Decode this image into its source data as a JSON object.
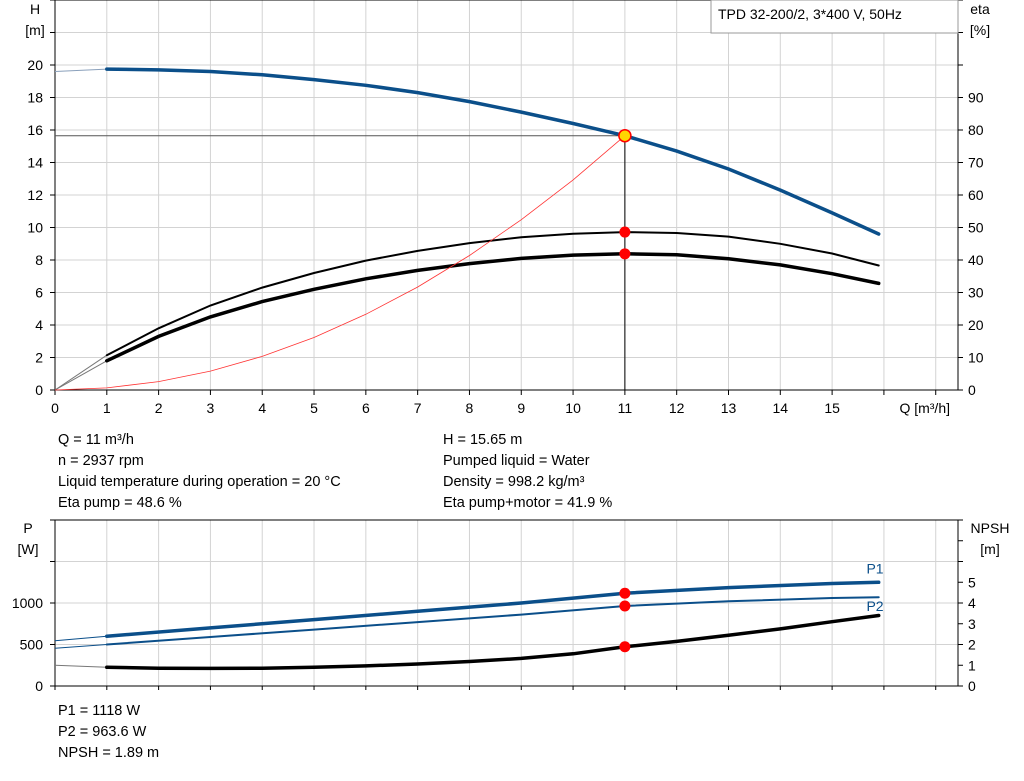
{
  "legend_box": "TPD 32-200/2, 3*400 V, 50Hz",
  "colors": {
    "head": "#0b4f8a",
    "eta": "#000000",
    "system": "#ff3333",
    "power": "#0b4f8a",
    "npsh": "#000000",
    "point": "#ff0000",
    "duty_point": "#ffd700",
    "grid": "#d3d3d3"
  },
  "chart_data": [
    {
      "type": "line",
      "xlabel": "Q [m³/h]",
      "ylabel": [
        "H",
        "[m]"
      ],
      "y2label": [
        "eta",
        "[%]"
      ],
      "xlim": [
        0,
        17
      ],
      "xticks": [
        0,
        1,
        2,
        3,
        4,
        5,
        6,
        7,
        8,
        9,
        10,
        11,
        12,
        13,
        14,
        15
      ],
      "ylim": [
        0,
        24
      ],
      "yticks": [
        0,
        2,
        4,
        6,
        8,
        10,
        12,
        14,
        16,
        18,
        20
      ],
      "y2lim": [
        0,
        120
      ],
      "y2ticks": [
        0,
        10,
        20,
        30,
        40,
        50,
        60,
        70,
        80,
        90
      ],
      "grid": true,
      "series": [
        {
          "key": "H",
          "axis": "left",
          "x": [
            0,
            1,
            2,
            3,
            4,
            5,
            6,
            7,
            8,
            9,
            10,
            11,
            12,
            13,
            14,
            15,
            15.9
          ],
          "y": [
            19.6,
            19.75,
            19.7,
            19.6,
            19.4,
            19.1,
            18.75,
            18.3,
            17.75,
            17.1,
            16.4,
            15.65,
            14.7,
            13.6,
            12.3,
            10.9,
            9.6
          ]
        },
        {
          "key": "eta_pump",
          "axis": "right",
          "x": [
            0,
            1,
            2,
            3,
            4,
            5,
            6,
            7,
            8,
            9,
            10,
            11,
            12,
            13,
            14,
            15,
            15.9
          ],
          "y": [
            0,
            10.7,
            19,
            26,
            31.5,
            36,
            39.8,
            42.8,
            45.2,
            47,
            48.1,
            48.6,
            48.3,
            47.2,
            45,
            42,
            38.3
          ]
        },
        {
          "key": "eta_pump_motor",
          "axis": "right",
          "x": [
            0,
            1,
            2,
            3,
            4,
            5,
            6,
            7,
            8,
            9,
            10,
            11,
            12,
            13,
            14,
            15,
            15.9
          ],
          "y": [
            0,
            9,
            16.5,
            22.5,
            27.2,
            31,
            34.2,
            36.8,
            38.9,
            40.5,
            41.5,
            41.9,
            41.6,
            40.4,
            38.5,
            35.8,
            32.8
          ]
        },
        {
          "key": "system",
          "axis": "left",
          "x": [
            0,
            1,
            2,
            3,
            4,
            5,
            6,
            7,
            8,
            9,
            10,
            11
          ],
          "y": [
            0,
            0.13,
            0.52,
            1.16,
            2.07,
            3.23,
            4.66,
            6.34,
            8.28,
            10.48,
            12.93,
            15.65
          ]
        }
      ],
      "duty_point": {
        "Q": 11,
        "H": 15.65,
        "eta_pump": 48.6,
        "eta_pump_motor": 41.9
      }
    },
    {
      "type": "line",
      "ylabel": [
        "P",
        "[W]"
      ],
      "y2label": [
        "NPSH",
        "[m]"
      ],
      "xlim": [
        0,
        17
      ],
      "ylim": [
        0,
        2000
      ],
      "yticks": [
        0,
        500,
        1000
      ],
      "y2lim": [
        0,
        8
      ],
      "y2ticks": [
        0,
        1,
        2,
        3,
        4,
        5
      ],
      "grid": true,
      "series": [
        {
          "key": "P1",
          "name": "P1",
          "axis": "left",
          "x": [
            0,
            1,
            3,
            5,
            7,
            9,
            11,
            13,
            15,
            15.9
          ],
          "y": [
            545,
            600,
            700,
            800,
            900,
            1000,
            1118,
            1185,
            1235,
            1250
          ]
        },
        {
          "key": "P2",
          "name": "P2",
          "axis": "left",
          "x": [
            0,
            1,
            3,
            5,
            7,
            9,
            11,
            13,
            15,
            15.9
          ],
          "y": [
            455,
            500,
            590,
            680,
            770,
            860,
            963.6,
            1020,
            1060,
            1070
          ]
        },
        {
          "key": "NPSH",
          "axis": "right",
          "x": [
            0,
            1,
            2,
            3,
            4,
            5,
            6,
            7,
            8,
            9,
            10,
            11,
            12,
            13,
            14,
            15,
            15.9
          ],
          "y": [
            1.0,
            0.9,
            0.86,
            0.85,
            0.86,
            0.9,
            0.97,
            1.06,
            1.18,
            1.33,
            1.55,
            1.89,
            2.15,
            2.45,
            2.75,
            3.1,
            3.4
          ]
        }
      ],
      "duty_point": {
        "Q": 11,
        "P1": 1118,
        "P2": 963.6,
        "NPSH": 1.89
      }
    }
  ],
  "info_left": [
    "Q = 11 m³/h",
    "n = 2937 rpm",
    "Liquid temperature during operation = 20 °C",
    "Eta pump = 48.6 %"
  ],
  "info_right": [
    "H = 15.65 m",
    "Pumped liquid = Water",
    "Density = 998.2 kg/m³",
    "Eta pump+motor = 41.9 %"
  ],
  "info_bottom": [
    "P1 = 1118 W",
    "P2 = 963.6 W",
    "NPSH = 1.89 m"
  ]
}
